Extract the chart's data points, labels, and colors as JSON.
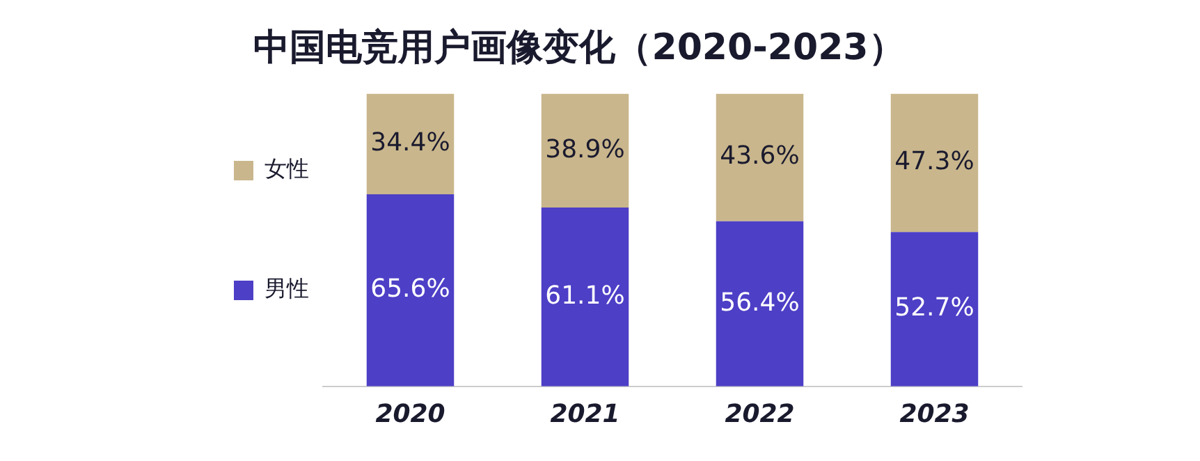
{
  "chart_data": {
    "type": "bar",
    "title": "中国电竞用户画像变化（2020-2023）",
    "categories": [
      "2020",
      "2021",
      "2022",
      "2023"
    ],
    "stacked": true,
    "legend": "left",
    "grid": false,
    "series": [
      {
        "name": "男性",
        "color": "#4d3fc6",
        "values": [
          65.6,
          61.1,
          56.4,
          52.7
        ],
        "value_labels": [
          "65.6%",
          "61.1%",
          "56.4%",
          "52.7%"
        ]
      },
      {
        "name": "女性",
        "color": "#c9b68c",
        "values": [
          34.4,
          38.9,
          43.6,
          47.3
        ],
        "value_labels": [
          "34.4%",
          "38.9%",
          "43.6%",
          "47.3%"
        ]
      }
    ]
  }
}
